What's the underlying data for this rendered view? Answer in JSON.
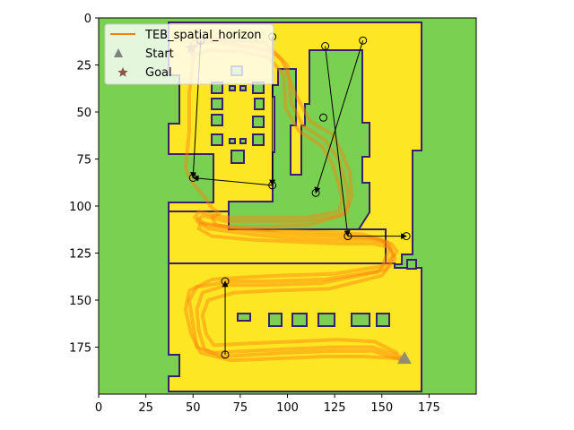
{
  "chart_data": {
    "type": "line",
    "title": "",
    "xlabel": "",
    "ylabel": "",
    "xlim": [
      0,
      200
    ],
    "ylim": [
      200,
      0
    ],
    "y_inverted": true,
    "grid": false,
    "legend_placement": "top-left",
    "x_ticks": [
      0,
      25,
      50,
      75,
      100,
      125,
      150,
      175
    ],
    "y_ticks": [
      0,
      25,
      50,
      75,
      100,
      125,
      150,
      175
    ],
    "colors": {
      "free_space": "#fde725",
      "obstacle": "#7ad151",
      "wall": "#3b1e6e",
      "trajectory": "#ff7f0e",
      "waypoint_edge": "#000000",
      "start_marker": "#808080",
      "goal_marker": "#8c564b"
    },
    "legend": [
      {
        "label": "TEB_spatial_horizon",
        "kind": "line",
        "color": "#ff7f0e"
      },
      {
        "label": "Start",
        "kind": "triangle",
        "color": "#808080"
      },
      {
        "label": "Goal",
        "kind": "star",
        "color": "#8c564b"
      }
    ],
    "start": [
      162,
      181
    ],
    "goal": [
      49,
      16
    ],
    "waypoints": [
      [
        54,
        12
      ],
      [
        92,
        10
      ],
      [
        120,
        15
      ],
      [
        140,
        12
      ],
      [
        119,
        53
      ],
      [
        50,
        85
      ],
      [
        92,
        89
      ],
      [
        115,
        93
      ],
      [
        132,
        116
      ],
      [
        163,
        116
      ],
      [
        67,
        140
      ],
      [
        67,
        179
      ]
    ],
    "route_arrows": [
      [
        [
          92,
          10
        ],
        [
          92,
          89
        ]
      ],
      [
        [
          92,
          89
        ],
        [
          50,
          85
        ]
      ],
      [
        [
          54,
          12
        ],
        [
          50,
          85
        ]
      ],
      [
        [
          120,
          15
        ],
        [
          132,
          116
        ]
      ],
      [
        [
          132,
          116
        ],
        [
          163,
          116
        ]
      ],
      [
        [
          140,
          12
        ],
        [
          115,
          93
        ]
      ],
      [
        [
          67,
          179
        ],
        [
          67,
          140
        ]
      ]
    ],
    "series": [
      {
        "name": "TEB_spatial_horizon",
        "runs": [
          [
            [
              49,
              16
            ],
            [
              52,
              14
            ],
            [
              60,
              13
            ],
            [
              78,
              15
            ],
            [
              92,
              18
            ],
            [
              100,
              25
            ],
            [
              102,
              45
            ],
            [
              108,
              57
            ],
            [
              120,
              65
            ],
            [
              127,
              75
            ],
            [
              130,
              85
            ],
            [
              132,
              92
            ],
            [
              132,
              100
            ],
            [
              128,
              105
            ],
            [
              110,
              108
            ],
            [
              85,
              108
            ],
            [
              67,
              108
            ],
            [
              55,
              105
            ],
            [
              52,
              108
            ],
            [
              58,
              112
            ],
            [
              80,
              115
            ],
            [
              100,
              117
            ],
            [
              125,
              118
            ],
            [
              145,
              118
            ],
            [
              155,
              120
            ],
            [
              158,
              124
            ],
            [
              152,
              134
            ],
            [
              120,
              139
            ],
            [
              90,
              140
            ],
            [
              70,
              140
            ],
            [
              52,
              143
            ],
            [
              48,
              150
            ],
            [
              50,
              163
            ],
            [
              52,
              175
            ],
            [
              60,
              178
            ],
            [
              80,
              177
            ],
            [
              100,
              176
            ],
            [
              125,
              175
            ],
            [
              145,
              175
            ],
            [
              160,
              180
            ]
          ],
          [
            [
              49,
              18
            ],
            [
              51,
              20
            ],
            [
              58,
              17
            ],
            [
              76,
              18
            ],
            [
              90,
              21
            ],
            [
              98,
              30
            ],
            [
              99,
              48
            ],
            [
              106,
              60
            ],
            [
              118,
              68
            ],
            [
              124,
              78
            ],
            [
              127,
              88
            ],
            [
              129,
              97
            ],
            [
              127,
              103
            ],
            [
              110,
              106
            ],
            [
              85,
              106
            ],
            [
              67,
              106
            ],
            [
              53,
              103
            ],
            [
              51,
              106
            ],
            [
              57,
              110
            ],
            [
              80,
              113
            ],
            [
              100,
              115
            ],
            [
              125,
              116
            ],
            [
              145,
              117
            ],
            [
              153,
              119
            ],
            [
              156,
              126
            ],
            [
              148,
              135
            ],
            [
              118,
              141
            ],
            [
              88,
              142
            ],
            [
              68,
              142
            ],
            [
              55,
              146
            ],
            [
              52,
              155
            ],
            [
              53,
              166
            ],
            [
              56,
              176
            ],
            [
              65,
              180
            ],
            [
              82,
              179
            ],
            [
              100,
              178
            ],
            [
              125,
              177
            ],
            [
              145,
              177
            ],
            [
              161,
              182
            ]
          ],
          [
            [
              48,
              15
            ],
            [
              50,
              22
            ],
            [
              48,
              40
            ],
            [
              48,
              60
            ],
            [
              46,
              80
            ],
            [
              50,
              88
            ],
            [
              56,
              95
            ],
            [
              60,
              101
            ],
            [
              64,
              104
            ],
            [
              60,
              106
            ],
            [
              62,
              110
            ],
            [
              75,
              112
            ],
            [
              95,
              113
            ],
            [
              120,
              114
            ],
            [
              140,
              115
            ],
            [
              150,
              118
            ],
            [
              154,
              123
            ],
            [
              150,
              132
            ],
            [
              125,
              136
            ],
            [
              95,
              137
            ],
            [
              75,
              138
            ],
            [
              60,
              139
            ],
            [
              48,
              145
            ],
            [
              46,
              155
            ],
            [
              49,
              168
            ],
            [
              54,
              178
            ],
            [
              70,
              182
            ],
            [
              95,
              181
            ],
            [
              120,
              180
            ],
            [
              140,
              180
            ],
            [
              160,
              181
            ]
          ],
          [
            [
              50,
              17
            ],
            [
              55,
              11
            ],
            [
              70,
              12
            ],
            [
              88,
              13
            ],
            [
              97,
              22
            ],
            [
              104,
              40
            ],
            [
              112,
              55
            ],
            [
              124,
              62
            ],
            [
              129,
              72
            ],
            [
              133,
              82
            ],
            [
              134,
              95
            ],
            [
              131,
              104
            ],
            [
              112,
              110
            ],
            [
              88,
              111
            ],
            [
              68,
              111
            ],
            [
              54,
              109
            ],
            [
              53,
              112
            ],
            [
              60,
              116
            ],
            [
              82,
              118
            ],
            [
              104,
              119
            ],
            [
              128,
              120
            ],
            [
              146,
              120
            ],
            [
              154,
              122
            ],
            [
              157,
              128
            ],
            [
              150,
              137
            ],
            [
              122,
              144
            ],
            [
              92,
              145
            ],
            [
              72,
              146
            ],
            [
              58,
              150
            ],
            [
              55,
              158
            ],
            [
              57,
              168
            ],
            [
              61,
              174
            ],
            [
              80,
              173
            ],
            [
              104,
              172
            ],
            [
              126,
              171
            ],
            [
              146,
              172
            ],
            [
              158,
              178
            ]
          ]
        ]
      }
    ]
  }
}
